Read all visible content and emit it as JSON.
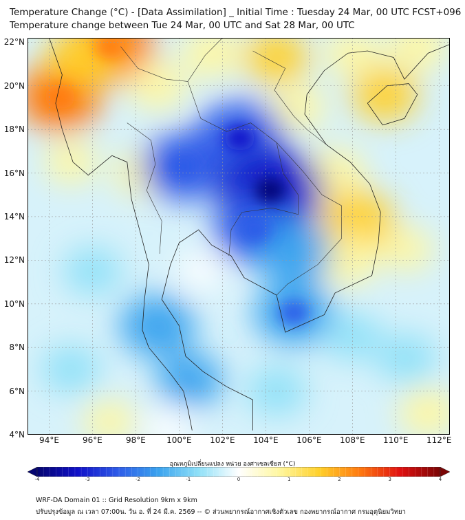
{
  "title_line1": "Temperature Change (°C) - [Data Assimilation] _ Initial Time : Tuesday 24 Mar, 00 UTC FCST+096",
  "title_line2": "Temperature change between Tue 24 Mar, 00 UTC and Sat 28 Mar, 00 UTC",
  "lat_labels": [
    "22°N",
    "20°N",
    "18°N",
    "16°N",
    "14°N",
    "12°N",
    "10°N",
    "8°N",
    "6°N",
    "4°N"
  ],
  "lon_labels": [
    "94°E",
    "96°E",
    "98°E",
    "100°E",
    "102°E",
    "104°E",
    "106°E",
    "108°E",
    "110°E",
    "112°E"
  ],
  "map": {
    "lon_range": [
      93,
      112.5
    ],
    "lat_range": [
      4,
      22.2
    ],
    "fields": [
      {
        "lon": 94.5,
        "lat": 19.5,
        "value": 2.2
      },
      {
        "lon": 96.8,
        "lat": 21.8,
        "value": 2.4
      },
      {
        "lon": 95.5,
        "lat": 21.3,
        "value": 1.6
      },
      {
        "lon": 99.0,
        "lat": 20.0,
        "value": 0.9
      },
      {
        "lon": 101.5,
        "lat": 21.5,
        "value": 1.0
      },
      {
        "lon": 104.5,
        "lat": 21.3,
        "value": 1.2
      },
      {
        "lon": 108.0,
        "lat": 21.5,
        "value": 0.8
      },
      {
        "lon": 111.0,
        "lat": 21.8,
        "value": 1.0
      },
      {
        "lon": 109.5,
        "lat": 19.6,
        "value": 1.3
      },
      {
        "lon": 105.5,
        "lat": 19.0,
        "value": 0.7
      },
      {
        "lon": 107.2,
        "lat": 16.0,
        "value": 1.0
      },
      {
        "lon": 108.2,
        "lat": 13.8,
        "value": 1.8
      },
      {
        "lon": 107.7,
        "lat": 12.0,
        "value": 1.1
      },
      {
        "lon": 110.5,
        "lat": 12.5,
        "value": 0.6
      },
      {
        "lon": 98.3,
        "lat": 16.0,
        "value": 0.8
      },
      {
        "lon": 95.0,
        "lat": 16.5,
        "value": 0.6
      },
      {
        "lon": 100.2,
        "lat": 16.3,
        "value": -2.2
      },
      {
        "lon": 102.8,
        "lat": 17.6,
        "value": -2.6
      },
      {
        "lon": 104.2,
        "lat": 15.2,
        "value": -3.3
      },
      {
        "lon": 103.5,
        "lat": 13.4,
        "value": -2.2
      },
      {
        "lon": 105.3,
        "lat": 12.4,
        "value": -1.8
      },
      {
        "lon": 105.3,
        "lat": 9.6,
        "value": -2.0
      },
      {
        "lon": 99.0,
        "lat": 9.0,
        "value": -1.8
      },
      {
        "lon": 100.5,
        "lat": 6.5,
        "value": -1.3
      },
      {
        "lon": 96.0,
        "lat": 11.5,
        "value": -0.9
      },
      {
        "lon": 95.0,
        "lat": 7.0,
        "value": -0.9
      },
      {
        "lon": 110.5,
        "lat": 7.5,
        "value": -1.0
      },
      {
        "lon": 108.0,
        "lat": 8.5,
        "value": -0.9
      },
      {
        "lon": 104.5,
        "lat": 6.0,
        "value": -1.0
      },
      {
        "lon": 101.0,
        "lat": 11.5,
        "value": -0.3
      },
      {
        "lon": 111.5,
        "lat": 5.0,
        "value": 0.9
      },
      {
        "lon": 96.8,
        "lat": 4.6,
        "value": 0.6
      },
      {
        "lon": 99.5,
        "lat": 4.3,
        "value": -0.4
      }
    ]
  },
  "colorbar": {
    "title": "อุณหภูมิเปลี่ยนแปลง หน่วย องศาเซลเซียส (°C)",
    "min": -4,
    "max": 4,
    "ticks": [
      "-4",
      "-3",
      "-2",
      "-1",
      "0",
      "1",
      "2",
      "3",
      "4"
    ],
    "colors": [
      "#050570",
      "#1010c8",
      "#2e5be8",
      "#3aa2ee",
      "#8fe0f8",
      "#ffffff",
      "#fff7a0",
      "#ffd02a",
      "#ff7a10",
      "#e01010",
      "#7a0505"
    ]
  },
  "footer_line1": "WRF-DA Domain 01 :: Grid Resolution 9km x 9km",
  "footer_line2": "ปรับปรุงข้อมูล ณ เวลา 07:00น. วัน อ. ที่ 24 มี.ค. 2569 -- © ส่วนพยากรณ์อากาศเชิงตัวเลข กองพยากรณ์อากาศ กรมอุตุนิยมวิทยา"
}
